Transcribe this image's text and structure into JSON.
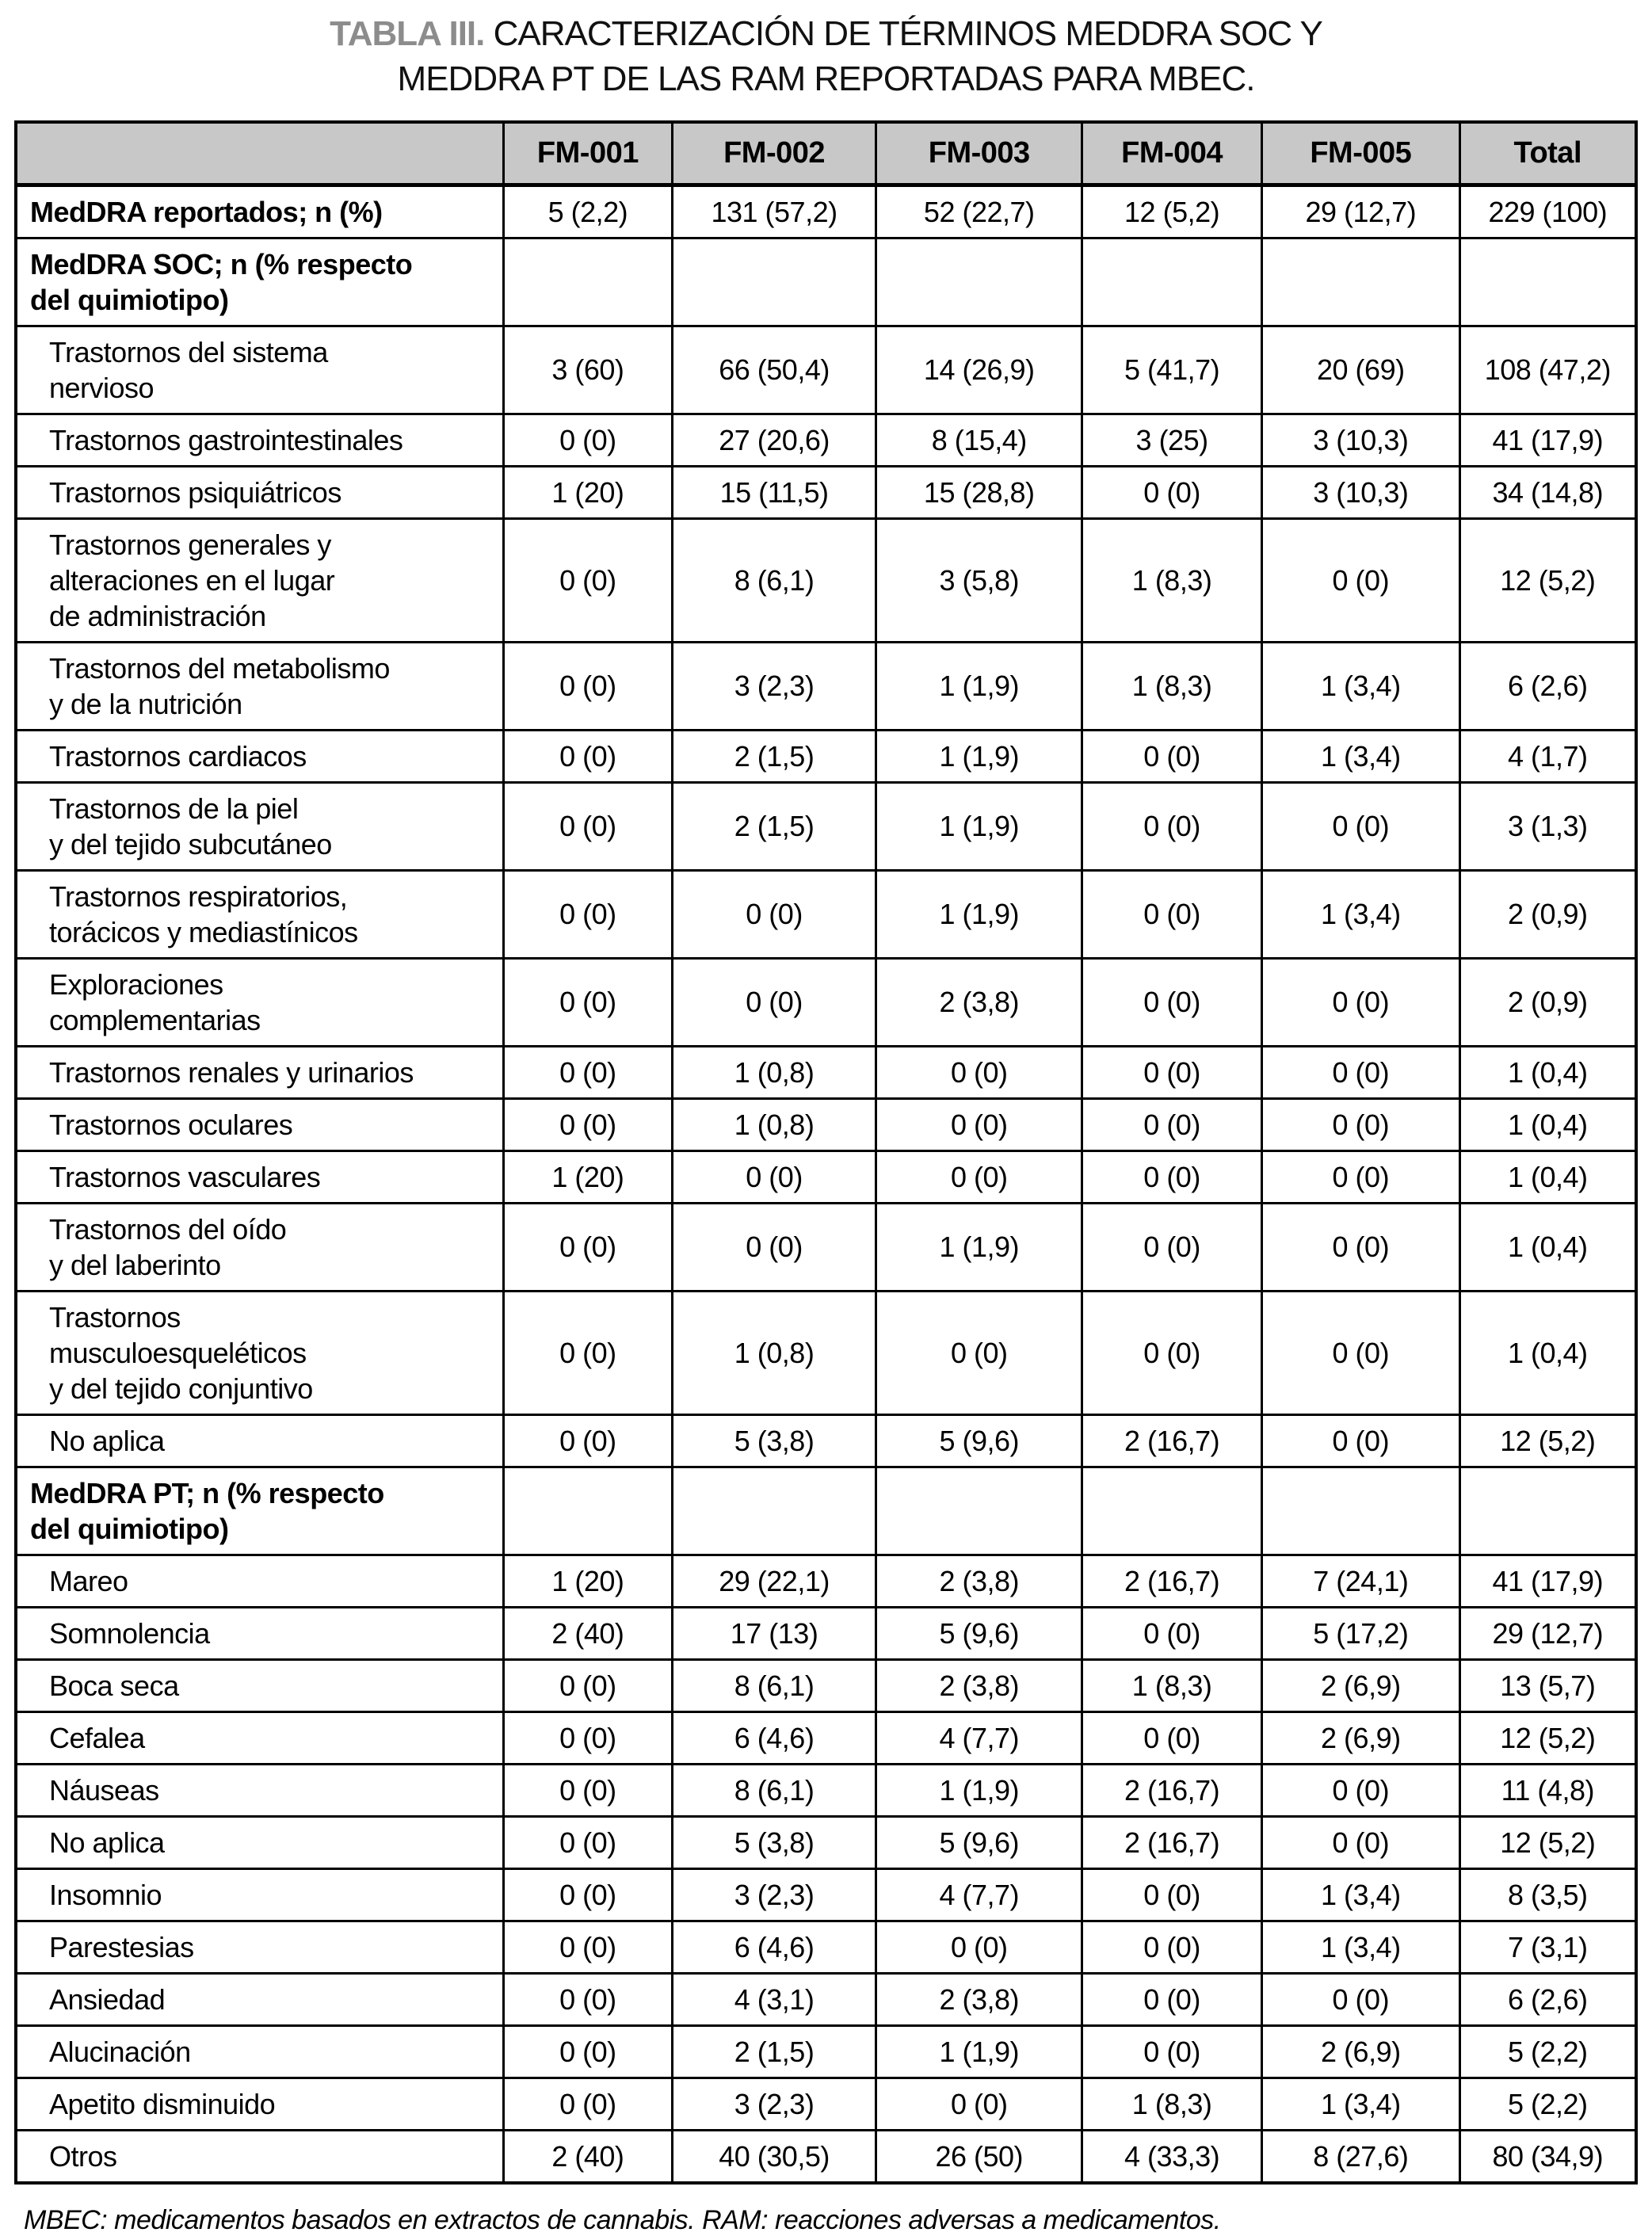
{
  "title": {
    "label": "TABLA III.",
    "text": " CARACTERIZACIÓN DE TÉRMINOS MEDDRA SOC Y MEDDRA PT DE LAS RAM REPORTADAS PARA MBEC."
  },
  "colors": {
    "header_bg": "#c8c8c8",
    "border": "#000000",
    "title_label_gray": "#8c8c8c"
  },
  "table": {
    "columns": [
      "",
      "FM-001",
      "FM-002",
      "FM-003",
      "FM-004",
      "FM-005",
      "Total"
    ],
    "rows": [
      {
        "label": "MedDRA reportados; n (%)",
        "style": "section",
        "values": [
          "5 (2,2)",
          "131 (57,2)",
          "52 (22,7)",
          "12 (5,2)",
          "29 (12,7)",
          "229 (100)"
        ]
      },
      {
        "label": "MedDRA SOC; n (% respecto\ndel quimiotipo)",
        "style": "section",
        "values": [
          "",
          "",
          "",
          "",
          "",
          ""
        ]
      },
      {
        "label": "Trastornos del sistema\nnervioso",
        "style": "item",
        "values": [
          "3 (60)",
          "66 (50,4)",
          "14 (26,9)",
          "5 (41,7)",
          "20 (69)",
          "108 (47,2)"
        ]
      },
      {
        "label": "Trastornos gastrointestinales",
        "style": "item",
        "values": [
          "0 (0)",
          "27 (20,6)",
          "8 (15,4)",
          "3 (25)",
          "3 (10,3)",
          "41 (17,9)"
        ]
      },
      {
        "label": "Trastornos psiquiátricos",
        "style": "item",
        "values": [
          "1 (20)",
          "15 (11,5)",
          "15 (28,8)",
          "0 (0)",
          "3 (10,3)",
          "34 (14,8)"
        ]
      },
      {
        "label": "Trastornos generales y\nalteraciones en el lugar\nde administración",
        "style": "item",
        "values": [
          "0 (0)",
          "8 (6,1)",
          "3 (5,8)",
          "1 (8,3)",
          "0 (0)",
          "12 (5,2)"
        ]
      },
      {
        "label": "Trastornos del metabolismo\ny de la nutrición",
        "style": "item",
        "values": [
          "0 (0)",
          "3 (2,3)",
          "1 (1,9)",
          "1 (8,3)",
          "1 (3,4)",
          "6 (2,6)"
        ]
      },
      {
        "label": "Trastornos cardiacos",
        "style": "item",
        "values": [
          "0 (0)",
          "2 (1,5)",
          "1 (1,9)",
          "0 (0)",
          "1 (3,4)",
          "4 (1,7)"
        ]
      },
      {
        "label": "Trastornos de la piel\ny del tejido subcutáneo",
        "style": "item",
        "values": [
          "0 (0)",
          "2 (1,5)",
          "1 (1,9)",
          "0 (0)",
          "0 (0)",
          "3 (1,3)"
        ]
      },
      {
        "label": "Trastornos respiratorios,\ntorácicos y mediastínicos",
        "style": "item",
        "values": [
          "0 (0)",
          "0 (0)",
          "1 (1,9)",
          "0 (0)",
          "1 (3,4)",
          "2 (0,9)"
        ]
      },
      {
        "label": "Exploraciones\ncomplementarias",
        "style": "item",
        "values": [
          "0 (0)",
          "0 (0)",
          "2 (3,8)",
          "0 (0)",
          "0 (0)",
          "2 (0,9)"
        ]
      },
      {
        "label": "Trastornos renales y urinarios",
        "style": "item",
        "values": [
          "0 (0)",
          "1 (0,8)",
          "0 (0)",
          "0 (0)",
          "0 (0)",
          "1 (0,4)"
        ]
      },
      {
        "label": "Trastornos oculares",
        "style": "item",
        "values": [
          "0 (0)",
          "1 (0,8)",
          "0 (0)",
          "0 (0)",
          "0 (0)",
          "1 (0,4)"
        ]
      },
      {
        "label": "Trastornos vasculares",
        "style": "item",
        "values": [
          "1 (20)",
          "0 (0)",
          "0 (0)",
          "0 (0)",
          "0 (0)",
          "1 (0,4)"
        ]
      },
      {
        "label": "Trastornos del oído\ny del laberinto",
        "style": "item",
        "values": [
          "0 (0)",
          "0 (0)",
          "1 (1,9)",
          "0 (0)",
          "0 (0)",
          "1 (0,4)"
        ]
      },
      {
        "label": "Trastornos\nmusculoesqueléticos\ny del tejido conjuntivo",
        "style": "item",
        "values": [
          "0 (0)",
          "1 (0,8)",
          "0 (0)",
          "0 (0)",
          "0 (0)",
          "1 (0,4)"
        ]
      },
      {
        "label": "No aplica",
        "style": "item",
        "values": [
          "0 (0)",
          "5 (3,8)",
          "5 (9,6)",
          "2 (16,7)",
          "0 (0)",
          "12 (5,2)"
        ]
      },
      {
        "label": "MedDRA PT; n (% respecto\ndel quimiotipo)",
        "style": "section",
        "values": [
          "",
          "",
          "",
          "",
          "",
          ""
        ]
      },
      {
        "label": "Mareo",
        "style": "item",
        "values": [
          "1 (20)",
          "29 (22,1)",
          "2 (3,8)",
          "2 (16,7)",
          "7 (24,1)",
          "41 (17,9)"
        ]
      },
      {
        "label": "Somnolencia",
        "style": "item",
        "values": [
          "2 (40)",
          "17 (13)",
          "5 (9,6)",
          "0 (0)",
          "5 (17,2)",
          "29 (12,7)"
        ]
      },
      {
        "label": "Boca seca",
        "style": "item",
        "values": [
          "0 (0)",
          "8 (6,1)",
          "2 (3,8)",
          "1 (8,3)",
          "2 (6,9)",
          "13 (5,7)"
        ]
      },
      {
        "label": "Cefalea",
        "style": "item",
        "values": [
          "0 (0)",
          "6 (4,6)",
          "4 (7,7)",
          "0 (0)",
          "2 (6,9)",
          "12 (5,2)"
        ]
      },
      {
        "label": "Náuseas",
        "style": "item",
        "values": [
          "0 (0)",
          "8 (6,1)",
          "1 (1,9)",
          "2 (16,7)",
          "0 (0)",
          "11 (4,8)"
        ]
      },
      {
        "label": "No aplica",
        "style": "item",
        "values": [
          "0 (0)",
          "5 (3,8)",
          "5 (9,6)",
          "2 (16,7)",
          "0 (0)",
          "12 (5,2)"
        ]
      },
      {
        "label": "Insomnio",
        "style": "item",
        "values": [
          "0 (0)",
          "3 (2,3)",
          "4 (7,7)",
          "0 (0)",
          "1 (3,4)",
          "8 (3,5)"
        ]
      },
      {
        "label": "Parestesias",
        "style": "item",
        "values": [
          "0 (0)",
          "6 (4,6)",
          "0 (0)",
          "0 (0)",
          "1 (3,4)",
          "7 (3,1)"
        ]
      },
      {
        "label": "Ansiedad",
        "style": "item",
        "values": [
          "0 (0)",
          "4 (3,1)",
          "2 (3,8)",
          "0 (0)",
          "0 (0)",
          "6 (2,6)"
        ]
      },
      {
        "label": "Alucinación",
        "style": "item",
        "values": [
          "0 (0)",
          "2 (1,5)",
          "1 (1,9)",
          "0 (0)",
          "2 (6,9)",
          "5 (2,2)"
        ]
      },
      {
        "label": "Apetito disminuido",
        "style": "item",
        "values": [
          "0 (0)",
          "3 (2,3)",
          "0 (0)",
          "1 (8,3)",
          "1 (3,4)",
          "5 (2,2)"
        ]
      },
      {
        "label": "Otros",
        "style": "item",
        "values": [
          "2 (40)",
          "40 (30,5)",
          "26 (50)",
          "4 (33,3)",
          "8 (27,6)",
          "80 (34,9)"
        ]
      }
    ]
  },
  "footnote": "MBEC: medicamentos basados en extractos de cannabis. RAM: reacciones adversas a medicamentos."
}
